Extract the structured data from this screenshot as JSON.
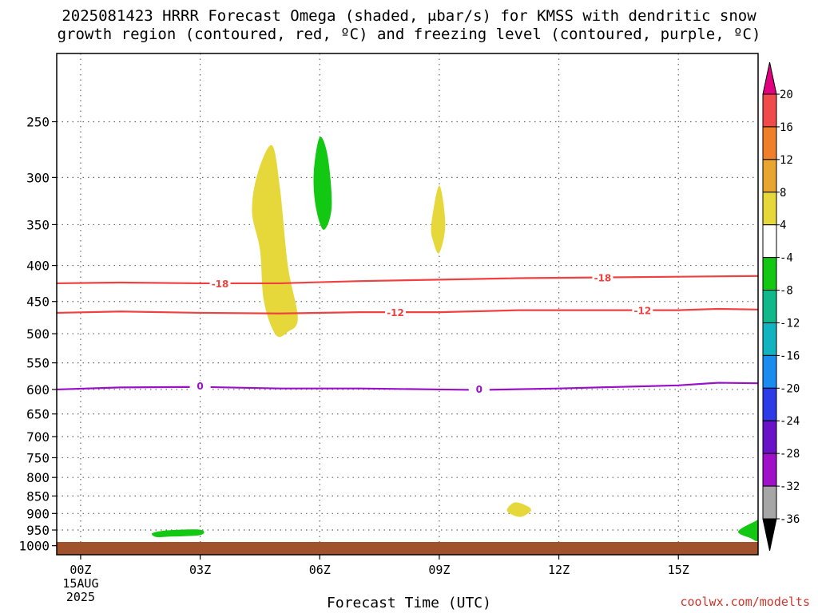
{
  "title": {
    "line1": "2025081423 HRRR Forecast Omega (shaded, μbar/s) for KMSS with dendritic snow",
    "line2": "growth region (contoured, red, ºC) and freezing level (contoured, purple, ºC)"
  },
  "watermark": "coolwx.com/modelts",
  "chart_data": {
    "type": "time-height",
    "title": "2025081423 HRRR Forecast Omega (shaded, μbar/s) for KMSS with dendritic snow growth region (contoured, red, ºC) and freezing level (contoured, purple, ºC)",
    "xlabel": "Forecast Time (UTC)",
    "ylabel": "",
    "xlim_hours": [
      -0.6,
      17.0
    ],
    "ylim_hpa": [
      1030,
      200
    ],
    "y_scale": "log-pressure",
    "grid": true,
    "x_ticks": [
      {
        "hour": 0,
        "label": "00Z",
        "sub1": "15AUG",
        "sub2": "2025"
      },
      {
        "hour": 3,
        "label": "03Z"
      },
      {
        "hour": 6,
        "label": "06Z"
      },
      {
        "hour": 9,
        "label": "09Z"
      },
      {
        "hour": 12,
        "label": "12Z"
      },
      {
        "hour": 15,
        "label": "15Z"
      }
    ],
    "y_ticks": [
      250,
      300,
      350,
      400,
      450,
      500,
      550,
      600,
      650,
      700,
      750,
      800,
      850,
      900,
      950,
      1000
    ],
    "colorbar": {
      "labels": [
        "20",
        "16",
        "12",
        "8",
        "4",
        "-4",
        "-8",
        "-12",
        "-16",
        "-20",
        "-24",
        "-28",
        "-32",
        "-36"
      ],
      "top_cap_color": "#e0007f",
      "bottom_cap_color": "#000000",
      "bins": [
        {
          "from": 16,
          "to": 20,
          "color": "#f04a4a"
        },
        {
          "from": 12,
          "to": 16,
          "color": "#f07f2a"
        },
        {
          "from": 8,
          "to": 12,
          "color": "#e8a630"
        },
        {
          "from": 4,
          "to": 8,
          "color": "#e6d83a"
        },
        {
          "from": -4,
          "to": 4,
          "color": "#ffffff"
        },
        {
          "from": -8,
          "to": -4,
          "color": "#12c812"
        },
        {
          "from": -12,
          "to": -8,
          "color": "#10b88a"
        },
        {
          "from": -16,
          "to": -12,
          "color": "#10b4c0"
        },
        {
          "from": -20,
          "to": -16,
          "color": "#1a8cf0"
        },
        {
          "from": -24,
          "to": -20,
          "color": "#2c3ae8"
        },
        {
          "from": -28,
          "to": -24,
          "color": "#6a12c8"
        },
        {
          "from": -32,
          "to": -28,
          "color": "#a010c8"
        },
        {
          "from": -36,
          "to": -32,
          "color": "#a6a6a6"
        }
      ]
    },
    "contours": [
      {
        "name": "-18",
        "label": "-18",
        "color": "#f04040",
        "points": [
          [
            -0.6,
            424
          ],
          [
            1,
            423
          ],
          [
            3,
            424
          ],
          [
            5,
            424
          ],
          [
            7,
            421
          ],
          [
            9,
            419
          ],
          [
            11,
            417
          ],
          [
            13,
            416
          ],
          [
            15,
            415
          ],
          [
            17,
            414
          ]
        ],
        "label_at": [
          [
            3.5,
            425
          ],
          [
            13.1,
            417
          ]
        ]
      },
      {
        "name": "-12",
        "label": "-12",
        "color": "#f04040",
        "points": [
          [
            -0.6,
            467
          ],
          [
            1,
            465
          ],
          [
            3,
            467
          ],
          [
            5,
            468
          ],
          [
            7,
            466
          ],
          [
            9,
            466
          ],
          [
            11,
            463
          ],
          [
            13,
            463
          ],
          [
            15,
            463
          ],
          [
            16,
            461
          ],
          [
            17,
            462
          ]
        ],
        "label_at": [
          [
            7.9,
            467
          ],
          [
            14.1,
            464
          ]
        ]
      },
      {
        "name": "freezing-level",
        "label": "0",
        "color": "#9a10c8",
        "points": [
          [
            -0.6,
            600
          ],
          [
            1,
            596
          ],
          [
            3,
            595
          ],
          [
            5,
            598
          ],
          [
            7,
            598
          ],
          [
            9,
            600
          ],
          [
            10,
            601
          ],
          [
            12,
            598
          ],
          [
            14,
            594
          ],
          [
            15,
            592
          ],
          [
            16,
            587
          ],
          [
            17,
            588
          ]
        ],
        "label_at": [
          [
            3.0,
            594
          ],
          [
            10.0,
            600
          ]
        ]
      }
    ],
    "shaded_regions": [
      {
        "value_bin": "4 to 8",
        "color": "#e6d83a",
        "outline": [
          [
            4.45,
            295
          ],
          [
            4.8,
            270
          ],
          [
            5.0,
            310
          ],
          [
            5.2,
            400
          ],
          [
            5.45,
            475
          ],
          [
            5.2,
            497
          ],
          [
            4.9,
            502
          ],
          [
            4.6,
            450
          ],
          [
            4.5,
            380
          ],
          [
            4.3,
            335
          ]
        ]
      },
      {
        "value_bin": "-8 to -4",
        "color": "#12c812",
        "outline": [
          [
            5.85,
            295
          ],
          [
            6.0,
            263
          ],
          [
            6.2,
            280
          ],
          [
            6.3,
            330
          ],
          [
            6.1,
            356
          ],
          [
            5.9,
            330
          ]
        ]
      },
      {
        "value_bin": "4 to 8",
        "color": "#e6d83a",
        "outline": [
          [
            8.8,
            350
          ],
          [
            9.0,
            308
          ],
          [
            9.15,
            350
          ],
          [
            9.0,
            384
          ],
          [
            8.85,
            370
          ]
        ]
      },
      {
        "value_bin": "4 to 8",
        "color": "#e6d83a",
        "outline": [
          [
            10.7,
            888
          ],
          [
            10.9,
            868
          ],
          [
            11.2,
            878
          ],
          [
            11.3,
            892
          ],
          [
            11.05,
            910
          ],
          [
            10.8,
            902
          ]
        ]
      },
      {
        "value_bin": "-8 to -4",
        "color": "#12c812",
        "outline": [
          [
            1.8,
            960
          ],
          [
            2.2,
            951
          ],
          [
            3.0,
            949
          ],
          [
            3.0,
            966
          ],
          [
            2.2,
            971
          ],
          [
            1.9,
            972
          ]
        ]
      },
      {
        "value_bin": "-8 to -4",
        "color": "#12c812",
        "outline": [
          [
            16.5,
            955
          ],
          [
            16.9,
            925
          ],
          [
            17.0,
            925
          ],
          [
            17.0,
            982
          ],
          [
            16.8,
            975
          ]
        ]
      }
    ],
    "ground_color": "#a0522d"
  }
}
